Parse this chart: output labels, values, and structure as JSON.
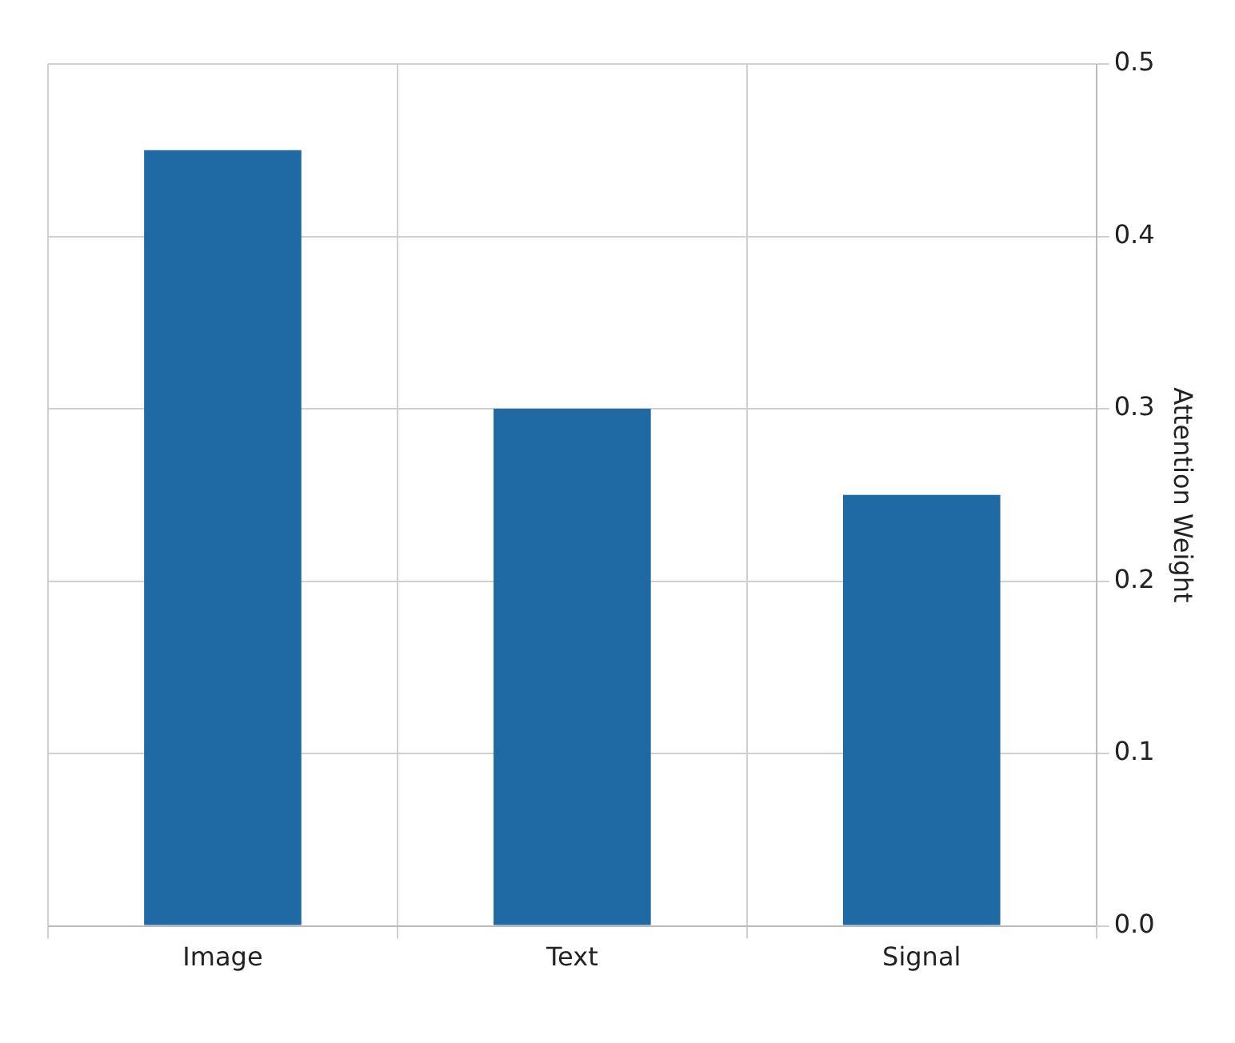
{
  "chart_data": {
    "type": "bar",
    "ylabel": "Attention Weight",
    "categories": [
      "Image",
      "Text",
      "Signal"
    ],
    "values": [
      0.45,
      0.3,
      0.25
    ],
    "color": "#1f6aa5",
    "ylim": [
      0,
      0.5
    ],
    "yticks": [
      {
        "value": 0,
        "label": "0.0"
      },
      0.1,
      0.2,
      0.3,
      0.4,
      0.5
    ],
    "grid": true
  }
}
